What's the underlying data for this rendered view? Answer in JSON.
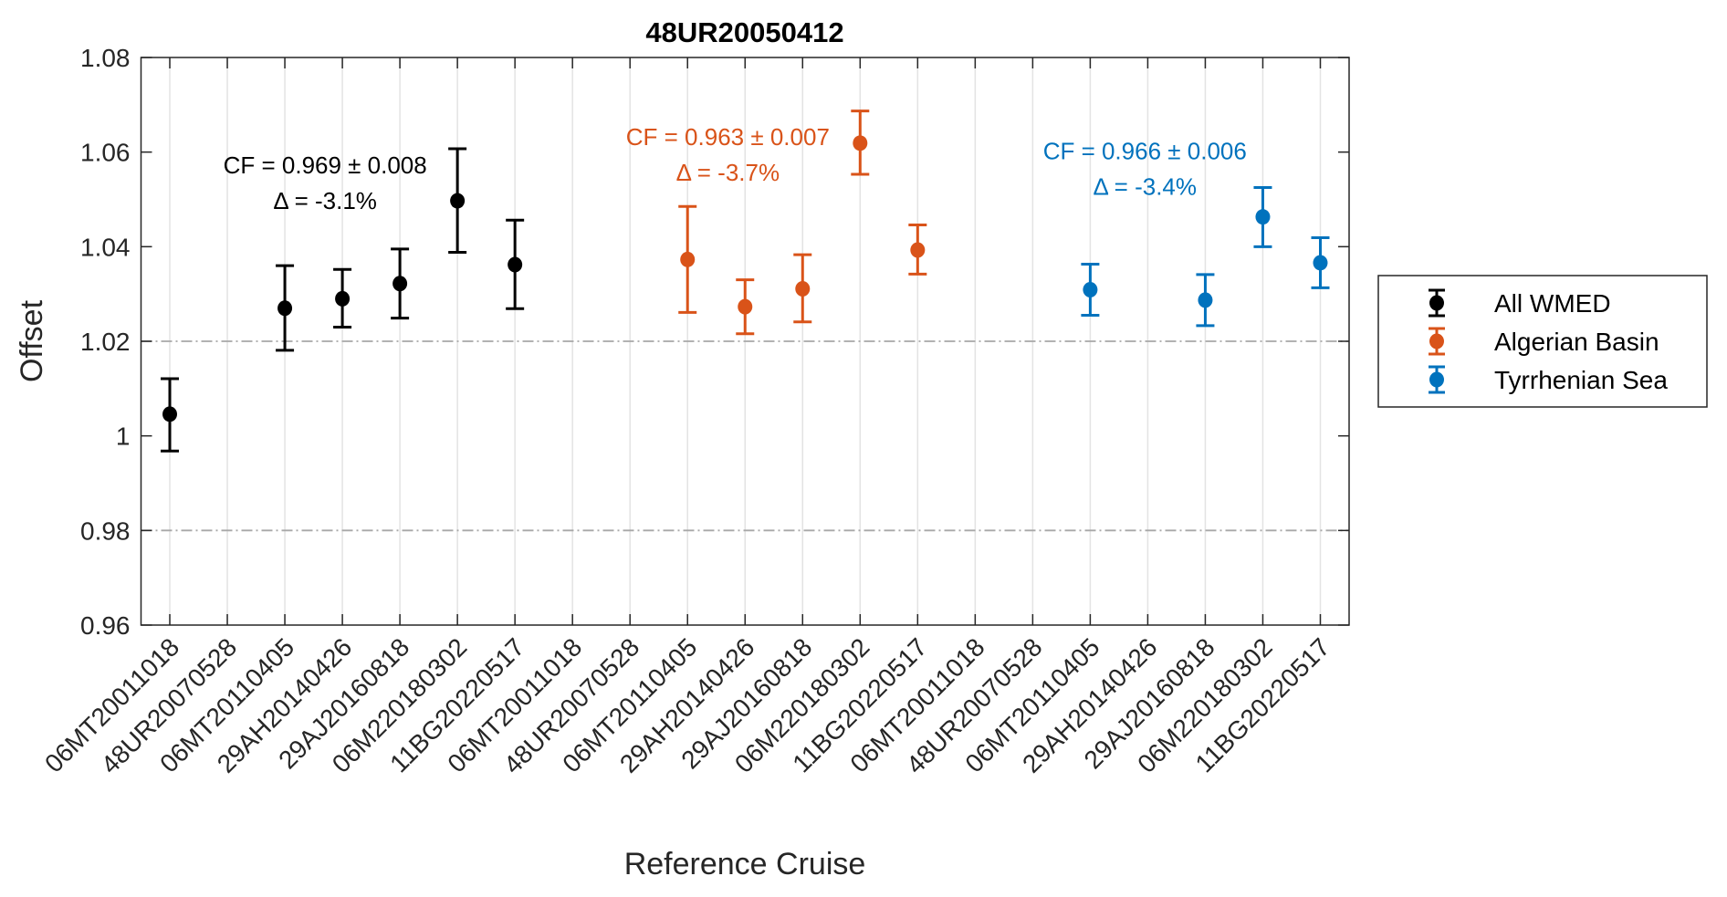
{
  "chart_data": {
    "type": "scatter",
    "title": "48UR20050412",
    "xlabel": "Reference Cruise",
    "ylabel": "Offset",
    "ylim": [
      0.96,
      1.08
    ],
    "yticks": [
      "0.96",
      "0.98",
      "1",
      "1.02",
      "1.04",
      "1.06",
      "1.08"
    ],
    "reference_lines": [
      0.98,
      1.02
    ],
    "grid": "vertical",
    "legend_position": "outside-right",
    "categories": [
      "06MT20011018",
      "48UR20070528",
      "06MT20110405",
      "29AH20140426",
      "29AJ20160818",
      "06M220180302",
      "11BG20220517",
      "06MT20011018",
      "48UR20070528",
      "06MT20110405",
      "29AH20140426",
      "29AJ20160818",
      "06M220180302",
      "11BG20220517",
      "06MT20011018",
      "48UR20070528",
      "06MT20110405",
      "29AH20140426",
      "29AJ20160818",
      "06M220180302",
      "11BG20220517"
    ],
    "series": [
      {
        "name": "All WMED",
        "color": "#000000",
        "points": [
          {
            "index": 1,
            "y": 1.0046,
            "low": 0.9968,
            "high": 1.0121
          },
          {
            "index": 3,
            "y": 1.027,
            "low": 1.0181,
            "high": 1.036
          },
          {
            "index": 4,
            "y": 1.029,
            "low": 1.023,
            "high": 1.0352
          },
          {
            "index": 5,
            "y": 1.0322,
            "low": 1.0249,
            "high": 1.0395
          },
          {
            "index": 6,
            "y": 1.0497,
            "low": 1.0388,
            "high": 1.0607
          },
          {
            "index": 7,
            "y": 1.0362,
            "low": 1.0269,
            "high": 1.0456
          }
        ]
      },
      {
        "name": "Algerian Basin",
        "color": "#D95319",
        "points": [
          {
            "index": 10,
            "y": 1.0373,
            "low": 1.0261,
            "high": 1.0485
          },
          {
            "index": 11,
            "y": 1.0273,
            "low": 1.0216,
            "high": 1.033
          },
          {
            "index": 12,
            "y": 1.0311,
            "low": 1.0241,
            "high": 1.0383
          },
          {
            "index": 13,
            "y": 1.0619,
            "low": 1.0553,
            "high": 1.0687
          },
          {
            "index": 14,
            "y": 1.0393,
            "low": 1.0342,
            "high": 1.0446
          }
        ]
      },
      {
        "name": "Tyrrhenian Sea",
        "color": "#0072BD",
        "points": [
          {
            "index": 17,
            "y": 1.0309,
            "low": 1.0255,
            "high": 1.0363
          },
          {
            "index": 19,
            "y": 1.0287,
            "low": 1.0233,
            "high": 1.0341
          },
          {
            "index": 20,
            "y": 1.0463,
            "low": 1.04,
            "high": 1.0525
          },
          {
            "index": 21,
            "y": 1.0366,
            "low": 1.0313,
            "high": 1.0419
          }
        ]
      }
    ],
    "annotations": [
      {
        "lines": [
          "CF = 0.969 ± 0.008",
          "Δ = -3.1%"
        ],
        "color": "#000000",
        "x": 3.7,
        "y": 1.0555
      },
      {
        "lines": [
          "CF = 0.963 ± 0.007",
          "Δ = -3.7%"
        ],
        "color": "#D95319",
        "x": 10.7,
        "y": 1.0615
      },
      {
        "lines": [
          "CF = 0.966 ± 0.006",
          "Δ = -3.4%"
        ],
        "color": "#0072BD",
        "x": 17.95,
        "y": 1.0585
      }
    ]
  }
}
